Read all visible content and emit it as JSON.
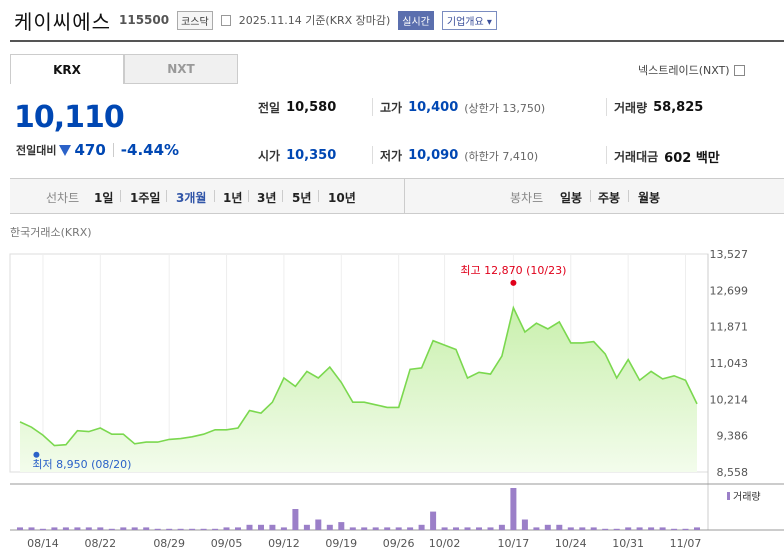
{
  "header": {
    "name": "케이씨에스",
    "code": "115500",
    "market": "코스닥",
    "date": "2025.11.14  기준(KRX 장마감)",
    "realtime_label": "실시간",
    "company_label": "기업개요 ▾"
  },
  "tabs": [
    {
      "label": "KRX",
      "active": true
    },
    {
      "label": "NXT",
      "active": false
    }
  ],
  "nxt_toggle": "넥스트레이드(NXT)",
  "price": {
    "current": "10,110",
    "change_label": "전일대비",
    "change": "470",
    "change_pct": "-4.44%"
  },
  "stats": {
    "prev_label": "전일",
    "prev": "10,580",
    "high_label": "고가",
    "high": "10,400",
    "upper_limit": "(상한가 13,750)",
    "volume_label": "거래량",
    "volume": "58,825",
    "open_label": "시가",
    "open": "10,350",
    "low_label": "저가",
    "low": "10,090",
    "lower_limit": "(하한가 7,410)",
    "amount_label": "거래대금",
    "amount": "602 백만"
  },
  "periods": {
    "label": "선차트",
    "items": [
      "1일",
      "1주일",
      "3개월",
      "1년",
      "3년",
      "5년",
      "10년"
    ],
    "active": "3개월"
  },
  "candle": {
    "label": "봉차트",
    "items": [
      "일봉",
      "주봉",
      "월봉"
    ]
  },
  "exchange_label": "한국거래소(KRX)",
  "colors": {
    "price_blue": "#0047b3",
    "line_green": "#7bd84f",
    "fill_green": "#e6f8d8",
    "volume_purple": "#9b7fc8",
    "max_red": "#e0001b",
    "min_blue": "#2b62c8"
  },
  "chart_data": {
    "type": "area",
    "y_ticks": [
      13527,
      12699,
      11871,
      11043,
      10214,
      9386,
      8558
    ],
    "ylim": [
      8558,
      13527
    ],
    "x_labels": [
      "08/14",
      "08/22",
      "08/29",
      "09/05",
      "09/12",
      "09/19",
      "09/26",
      "10/02",
      "10/17",
      "10/24",
      "10/31",
      "11/07"
    ],
    "max_annotation": "최고 12,870 (10/23)",
    "min_annotation": "최저 8,950 (08/20)",
    "volume_label": "거래량",
    "series": [
      {
        "values": [
          9700,
          9580,
          9400,
          9160,
          9180,
          9500,
          9480,
          9560,
          9420,
          9420,
          9200,
          9240,
          9240,
          9300,
          9320,
          9360,
          9420,
          9520,
          9520,
          9560,
          9960,
          9900,
          10150,
          10700,
          10510,
          10850,
          10700,
          10950,
          10600,
          10150,
          10150,
          10090,
          10030,
          10030,
          10900,
          10930,
          11550,
          11450,
          11350,
          10700,
          10830,
          10790,
          11200,
          12300,
          11750,
          11950,
          11820,
          11980,
          11500,
          11500,
          11530,
          11250,
          10700,
          11120,
          10650,
          10850,
          10680,
          10750,
          10650,
          10110
        ]
      }
    ],
    "volumes": [
      1,
      1,
      0,
      1,
      1,
      1,
      1,
      1,
      0,
      1,
      1,
      1,
      0,
      0,
      0,
      0,
      0,
      0,
      1,
      1,
      2,
      2,
      2,
      1,
      8,
      2,
      4,
      2,
      3,
      1,
      1,
      1,
      1,
      1,
      1,
      2,
      7,
      1,
      1,
      1,
      1,
      1,
      2,
      16,
      4,
      1,
      2,
      2,
      1,
      1,
      1,
      0,
      0,
      1,
      1,
      1,
      1,
      0,
      0,
      1
    ]
  }
}
